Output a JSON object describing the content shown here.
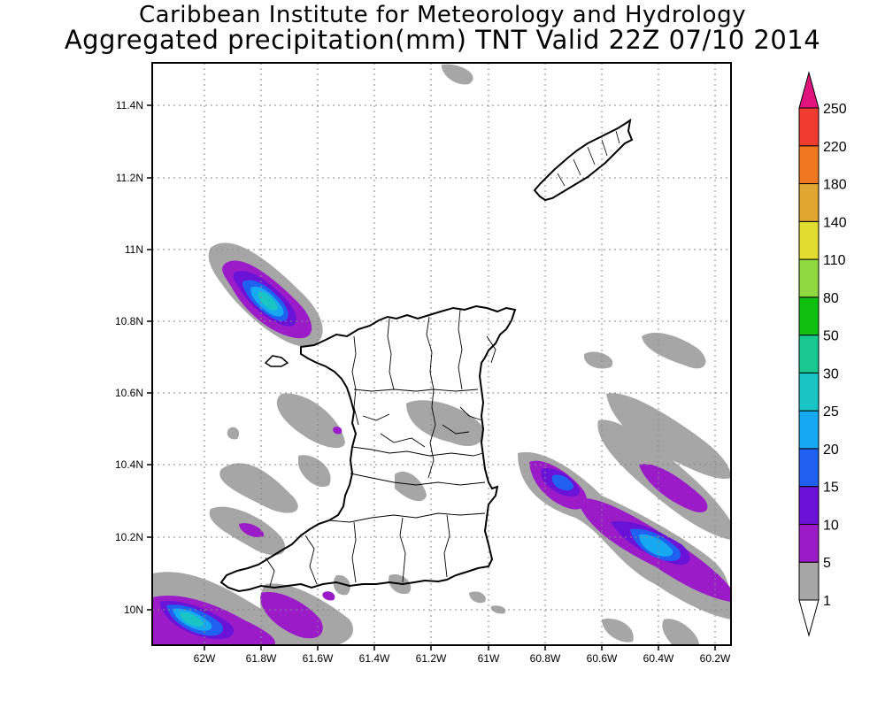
{
  "title_line1": "Caribbean Institute for Meteorology and Hydrology",
  "title_line2": "Aggregated precipitation(mm) TNT Valid 22Z 07/10 2014",
  "axes": {
    "x_ticks": [
      "62W",
      "61.8W",
      "61.6W",
      "61.4W",
      "61.2W",
      "61W",
      "60.8W",
      "60.6W",
      "60.4W",
      "60.2W"
    ],
    "y_ticks": [
      "10N",
      "10.2N",
      "10.4N",
      "10.6N",
      "10.8N",
      "11N",
      "11.2N",
      "11.4N"
    ],
    "grid": true
  },
  "colorbar": {
    "levels": [
      "1",
      "5",
      "10",
      "15",
      "20",
      "25",
      "30",
      "50",
      "80",
      "110",
      "140",
      "180",
      "220",
      "250"
    ],
    "colors": [
      "#ffffff",
      "#a6a6a6",
      "#9b1bc9",
      "#6a12d8",
      "#2060f0",
      "#16a8f0",
      "#18c4c4",
      "#18c890",
      "#10c010",
      "#90d840",
      "#e0dc30",
      "#e0a630",
      "#f07820",
      "#f03c30",
      "#e0147c"
    ]
  },
  "precip_colors": {
    "light": "#a6a6a6",
    "moderate": "#9b1bc9",
    "heavy": "#6a12d8",
    "very_heavy": "#2060f0",
    "core": "#16a8f0",
    "peak": "#18c4c4"
  }
}
